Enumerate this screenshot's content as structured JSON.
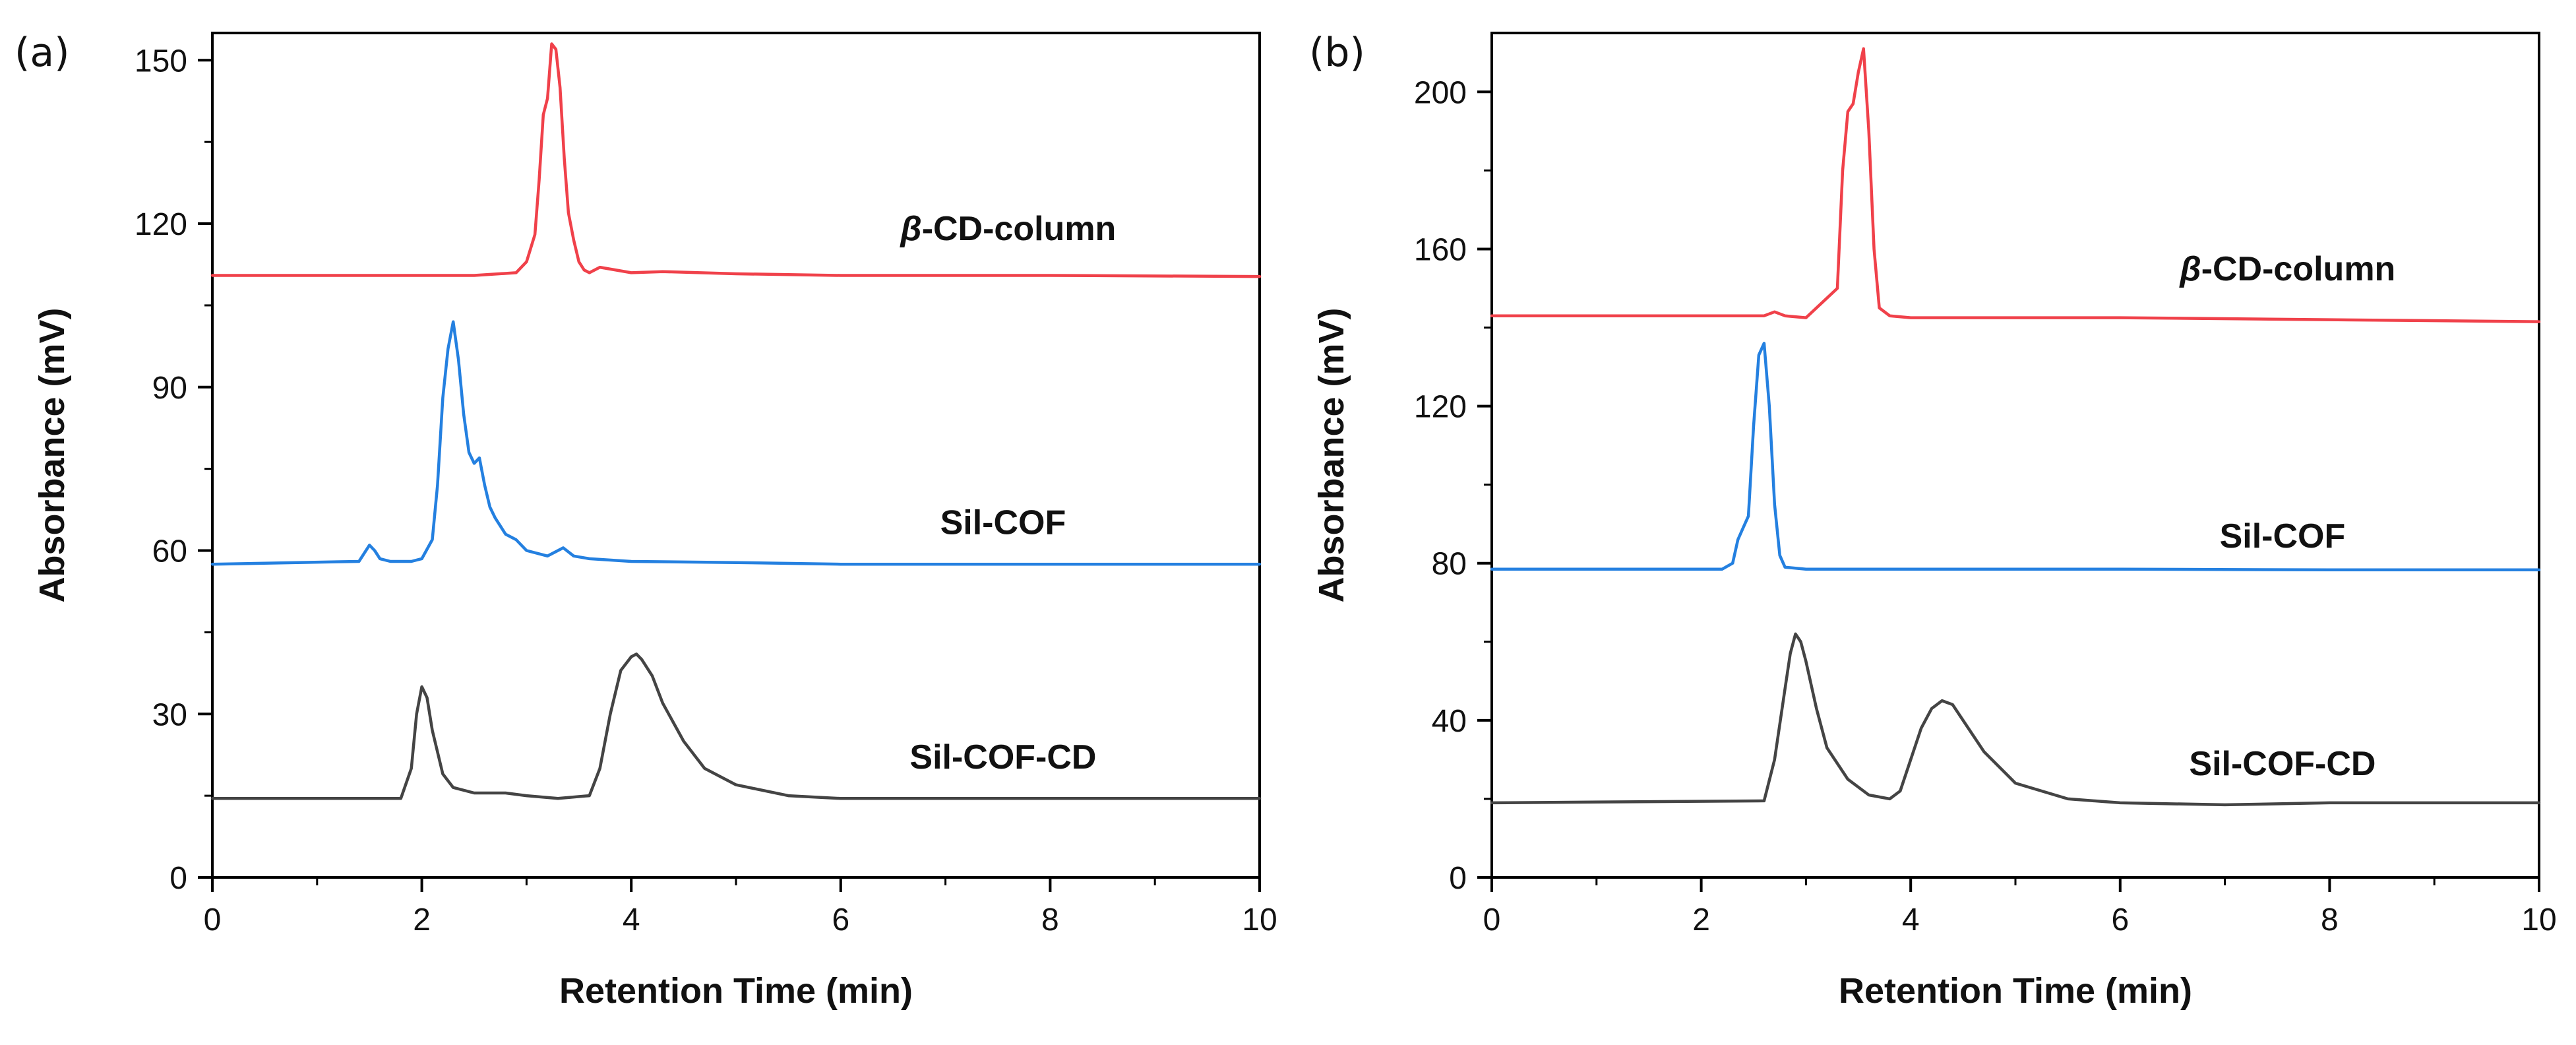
{
  "chart_data": [
    {
      "panel_label": "(a)",
      "type": "line",
      "xlabel": "Retention Time (min)",
      "ylabel": "Absorbance (mV)",
      "xlim": [
        0,
        10
      ],
      "ylim": [
        0,
        155
      ],
      "xticks": [
        0,
        2,
        4,
        6,
        8,
        10
      ],
      "yticks": [
        0,
        30,
        60,
        90,
        120,
        150
      ],
      "grid": false,
      "series": [
        {
          "name": "β-CD-column",
          "label_bold_prefix": "β",
          "label_rest": "-CD-column",
          "color": "#f0414a",
          "label_x": 7.6,
          "label_y": 117,
          "x": [
            0,
            2.5,
            2.9,
            3.0,
            3.08,
            3.12,
            3.16,
            3.2,
            3.24,
            3.28,
            3.32,
            3.36,
            3.4,
            3.45,
            3.5,
            3.55,
            3.6,
            3.7,
            4.0,
            4.3,
            5.0,
            6.0,
            8.0,
            10.0
          ],
          "y": [
            110.5,
            110.5,
            111,
            113,
            118,
            128,
            140,
            143,
            153,
            152,
            145,
            132,
            122,
            117,
            113,
            111.5,
            111,
            112,
            111,
            111.2,
            110.8,
            110.5,
            110.5,
            110.3
          ]
        },
        {
          "name": "Sil-COF",
          "color": "#2480e0",
          "label_x": 7.55,
          "label_y": 63,
          "x": [
            0,
            1.4,
            1.5,
            1.55,
            1.6,
            1.7,
            1.9,
            2.0,
            2.1,
            2.15,
            2.2,
            2.25,
            2.3,
            2.35,
            2.4,
            2.45,
            2.5,
            2.55,
            2.6,
            2.65,
            2.7,
            2.8,
            2.9,
            3.0,
            3.2,
            3.35,
            3.45,
            3.6,
            4.0,
            5.0,
            6.0,
            8.0,
            10.0
          ],
          "y": [
            57.5,
            58,
            61,
            60,
            58.5,
            58,
            58,
            58.5,
            62,
            72,
            88,
            97,
            102,
            95,
            85,
            78,
            76,
            77,
            72,
            68,
            66,
            63,
            62,
            60,
            59,
            60.5,
            59,
            58.5,
            58,
            57.8,
            57.5,
            57.5,
            57.5
          ]
        },
        {
          "name": "Sil-COF-CD",
          "color": "#444444",
          "label_x": 7.55,
          "label_y": 20,
          "x": [
            0,
            1.8,
            1.9,
            1.95,
            2.0,
            2.05,
            2.1,
            2.2,
            2.3,
            2.5,
            2.8,
            3.0,
            3.3,
            3.6,
            3.7,
            3.8,
            3.9,
            4.0,
            4.05,
            4.1,
            4.2,
            4.3,
            4.5,
            4.7,
            5.0,
            5.5,
            6.0,
            8.0,
            10.0
          ],
          "y": [
            14.5,
            14.5,
            20,
            30,
            35,
            33,
            27,
            19,
            16.5,
            15.5,
            15.5,
            15,
            14.5,
            15,
            20,
            30,
            38,
            40.5,
            41,
            40,
            37,
            32,
            25,
            20,
            17,
            15,
            14.5,
            14.5,
            14.5
          ]
        }
      ]
    },
    {
      "panel_label": "(b)",
      "type": "line",
      "xlabel": "Retention Time (min)",
      "ylabel": "Absorbance (mV)",
      "xlim": [
        0,
        10
      ],
      "ylim": [
        0,
        215
      ],
      "xticks": [
        0,
        2,
        4,
        6,
        8,
        10
      ],
      "yticks": [
        0,
        40,
        80,
        120,
        160,
        200
      ],
      "grid": false,
      "series": [
        {
          "name": "β-CD-column",
          "label_bold_prefix": "β",
          "label_rest": "-CD-column",
          "color": "#f0414a",
          "label_x": 7.6,
          "label_y": 152,
          "x": [
            0,
            2.6,
            2.7,
            2.8,
            3.0,
            3.3,
            3.35,
            3.4,
            3.45,
            3.5,
            3.55,
            3.6,
            3.65,
            3.7,
            3.8,
            4.0,
            6.0,
            8.0,
            10.0
          ],
          "y": [
            143,
            143,
            144,
            143,
            142.5,
            150,
            180,
            195,
            197,
            205,
            211,
            190,
            160,
            145,
            143,
            142.5,
            142.5,
            142,
            141.5
          ],
          "_note": "baseline ~143 with small bump near 2.7 min"
        },
        {
          "name": "Sil-COF",
          "color": "#2480e0",
          "label_x": 7.55,
          "label_y": 84,
          "x": [
            0,
            2.2,
            2.3,
            2.35,
            2.4,
            2.45,
            2.5,
            2.55,
            2.6,
            2.65,
            2.7,
            2.75,
            2.8,
            3.0,
            4.0,
            6.0,
            8.0,
            10.0
          ],
          "y": [
            78.5,
            78.5,
            80,
            86,
            89,
            92,
            115,
            133,
            136,
            120,
            95,
            82,
            79,
            78.5,
            78.5,
            78.5,
            78.3,
            78.3
          ]
        },
        {
          "name": "Sil-COF-CD",
          "color": "#444444",
          "label_x": 7.55,
          "label_y": 26,
          "x": [
            0,
            2.6,
            2.7,
            2.8,
            2.85,
            2.9,
            2.95,
            3.0,
            3.1,
            3.2,
            3.4,
            3.6,
            3.8,
            3.9,
            4.0,
            4.1,
            4.2,
            4.3,
            4.4,
            4.5,
            4.7,
            5.0,
            5.5,
            6.0,
            7.0,
            8.0,
            10.0
          ],
          "y": [
            19,
            19.5,
            30,
            48,
            57,
            62,
            60,
            55,
            43,
            33,
            25,
            21,
            20,
            22,
            30,
            38,
            43,
            45,
            44,
            40,
            32,
            24,
            20,
            19,
            18.5,
            19,
            19
          ]
        }
      ]
    }
  ]
}
